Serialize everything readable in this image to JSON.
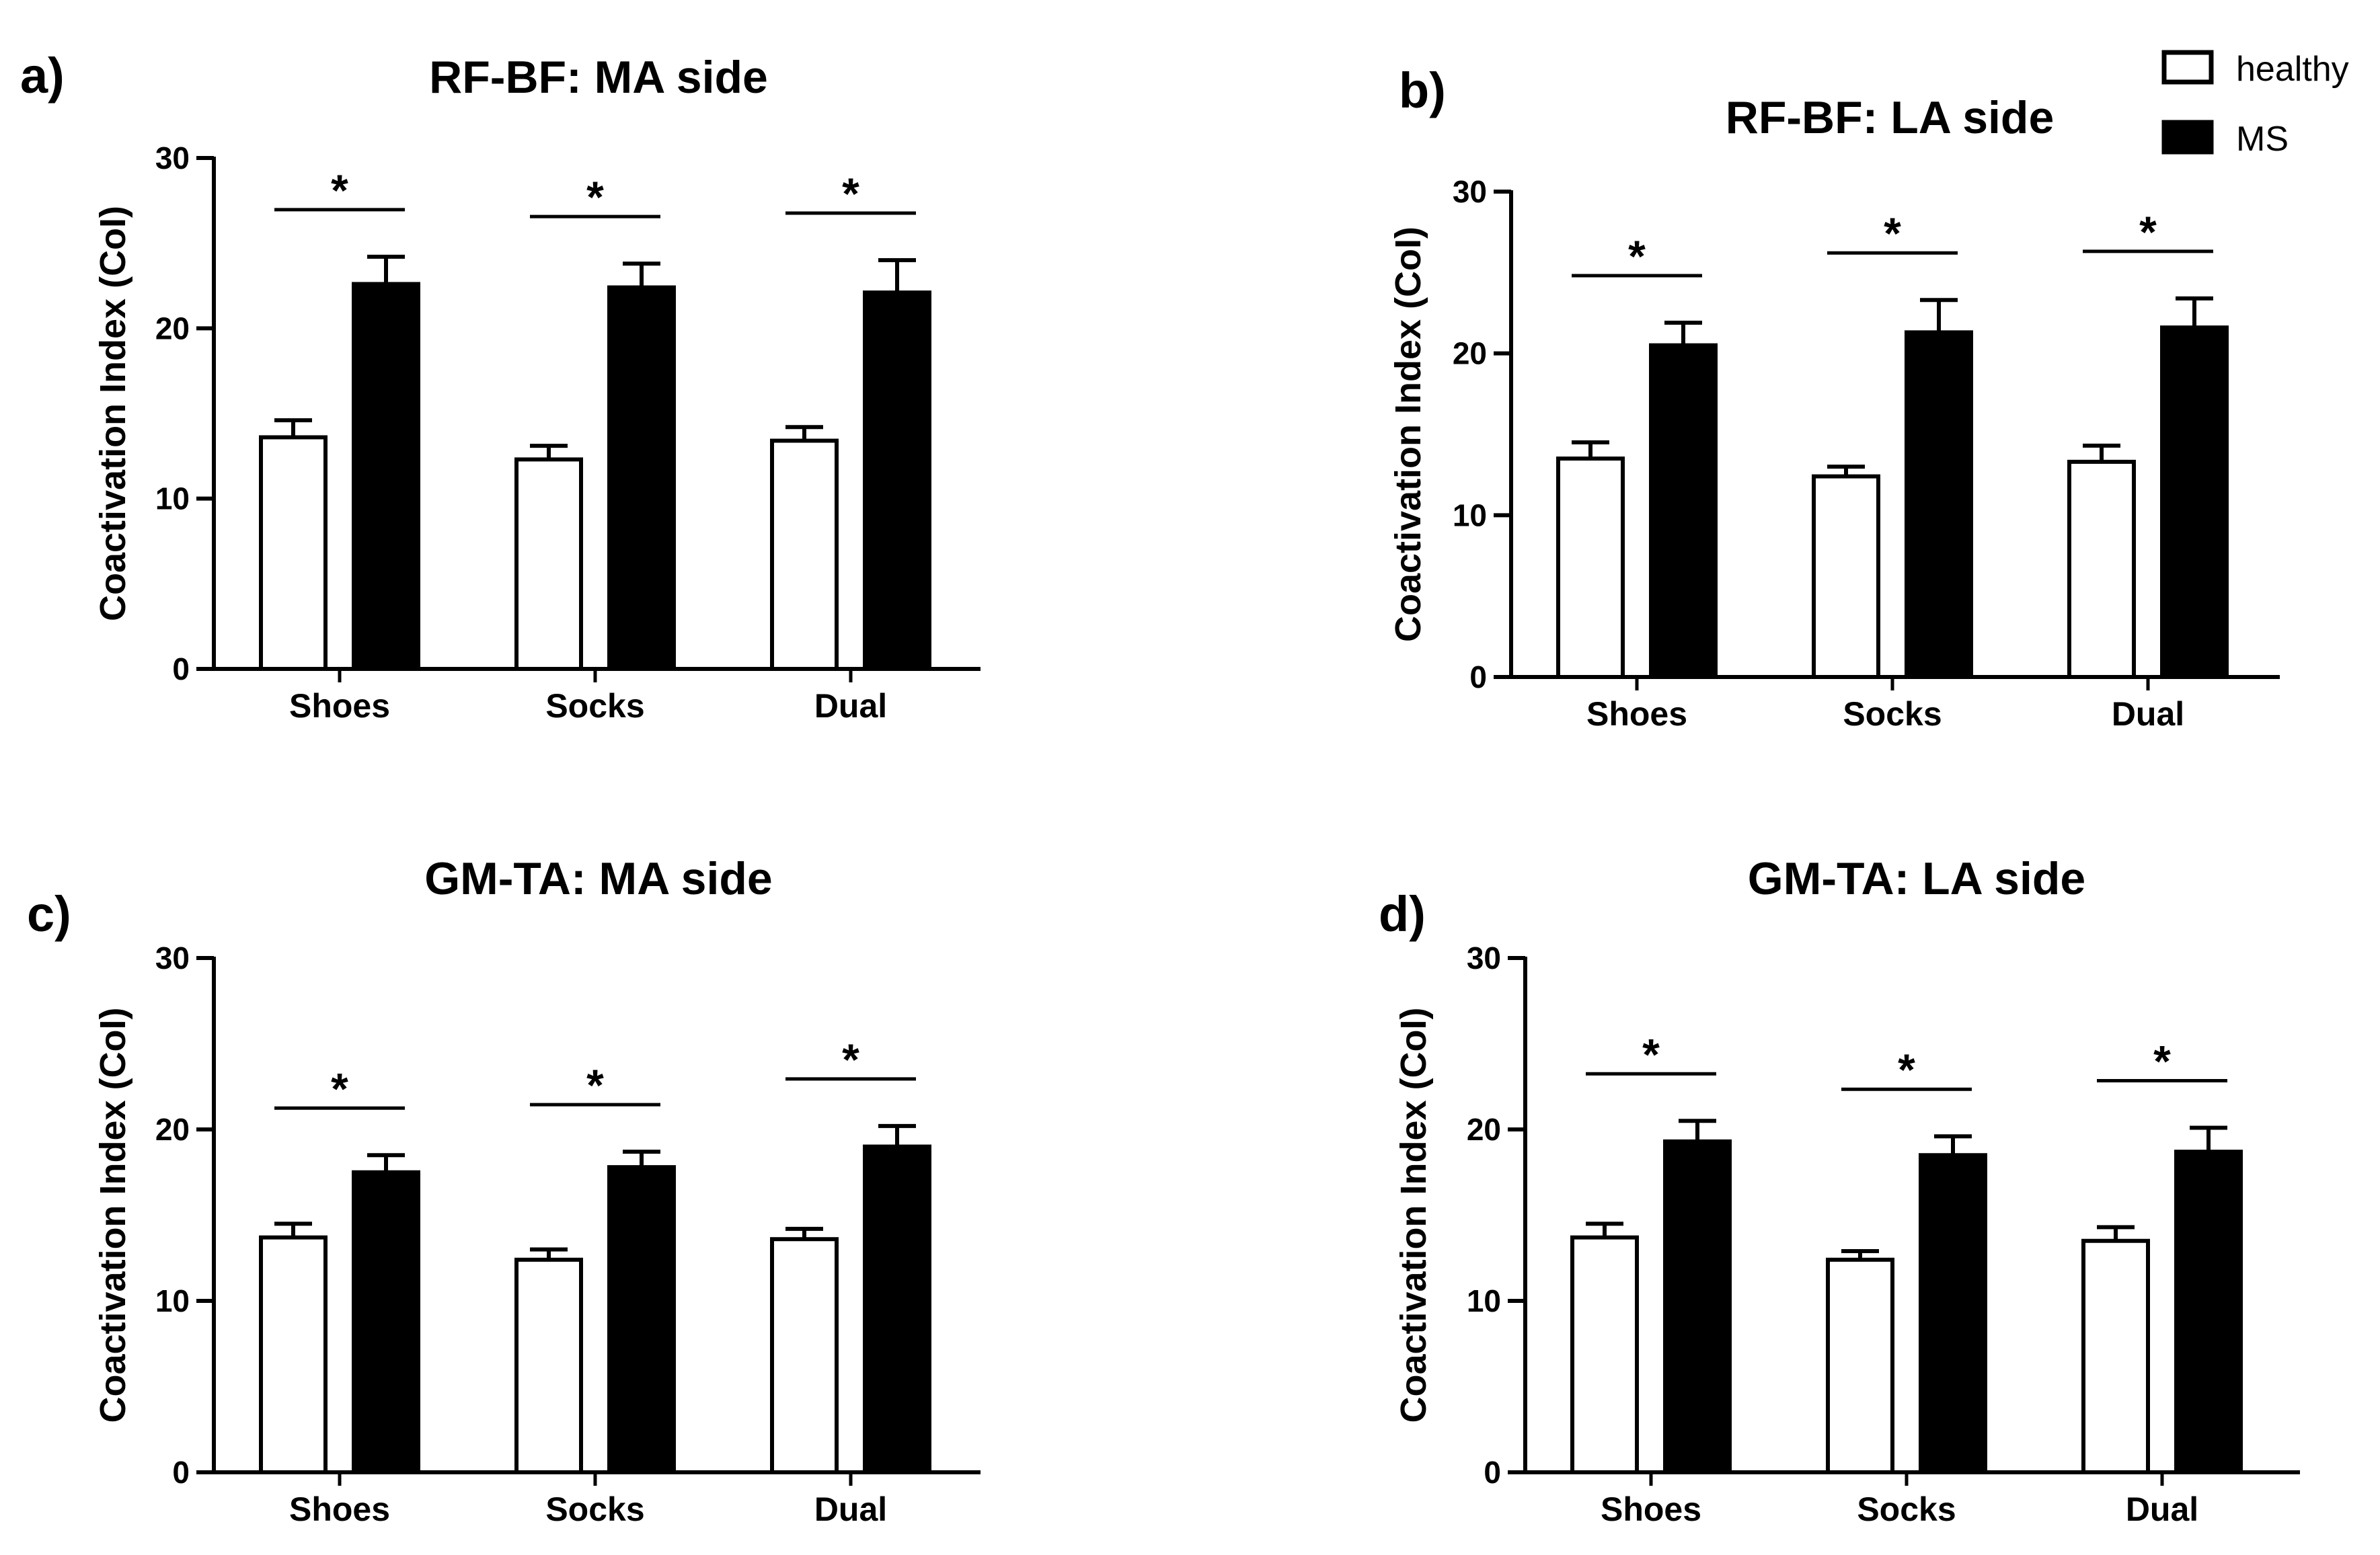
{
  "legend": {
    "items": [
      {
        "label": "healthy",
        "fill": "#ffffff"
      },
      {
        "label": "MS",
        "fill": "#000000"
      }
    ]
  },
  "chart_data": [
    {
      "type": "bar",
      "panel_label": "a)",
      "title": "RF-BF: MA side",
      "ylabel": "Coactivation Index (CoI)",
      "ylim": [
        0,
        30
      ],
      "yticks": [
        0,
        10,
        20,
        30
      ],
      "categories": [
        "Shoes",
        "Socks",
        "Dual"
      ],
      "series": [
        {
          "name": "healthy",
          "values": [
            13.6,
            12.3,
            13.4
          ],
          "errors": [
            1.0,
            0.8,
            0.8
          ]
        },
        {
          "name": "MS",
          "values": [
            22.6,
            22.4,
            22.1
          ],
          "errors": [
            1.6,
            1.4,
            1.9
          ]
        }
      ],
      "significance": [
        "*",
        "*",
        "*"
      ]
    },
    {
      "type": "bar",
      "panel_label": "b)",
      "title": "RF-BF: LA side",
      "ylabel": "Coactivation Index (CoI)",
      "ylim": [
        0,
        30
      ],
      "yticks": [
        0,
        10,
        20,
        30
      ],
      "categories": [
        "Shoes",
        "Socks",
        "Dual"
      ],
      "series": [
        {
          "name": "healthy",
          "values": [
            13.5,
            12.4,
            13.3
          ],
          "errors": [
            1.0,
            0.6,
            1.0
          ]
        },
        {
          "name": "MS",
          "values": [
            20.5,
            21.3,
            21.6
          ],
          "errors": [
            1.4,
            2.0,
            1.8
          ]
        }
      ],
      "significance": [
        "*",
        "*",
        "*"
      ]
    },
    {
      "type": "bar",
      "panel_label": "c)",
      "title": "GM-TA: MA side",
      "ylabel": "Coactivation Index (CoI)",
      "ylim": [
        0,
        30
      ],
      "yticks": [
        0,
        10,
        20,
        30
      ],
      "categories": [
        "Shoes",
        "Socks",
        "Dual"
      ],
      "series": [
        {
          "name": "healthy",
          "values": [
            13.7,
            12.4,
            13.6
          ],
          "errors": [
            0.8,
            0.6,
            0.6
          ]
        },
        {
          "name": "MS",
          "values": [
            17.5,
            17.8,
            19.0
          ],
          "errors": [
            1.0,
            0.9,
            1.2
          ]
        }
      ],
      "significance": [
        "*",
        "*",
        "*"
      ]
    },
    {
      "type": "bar",
      "panel_label": "d)",
      "title": "GM-TA: LA side",
      "ylabel": "Coactivation Index (CoI)",
      "ylim": [
        0,
        30
      ],
      "yticks": [
        0,
        10,
        20,
        30
      ],
      "categories": [
        "Shoes",
        "Socks",
        "Dual"
      ],
      "series": [
        {
          "name": "healthy",
          "values": [
            13.7,
            12.4,
            13.5
          ],
          "errors": [
            0.8,
            0.5,
            0.8
          ]
        },
        {
          "name": "MS",
          "values": [
            19.3,
            18.5,
            18.7
          ],
          "errors": [
            1.2,
            1.1,
            1.4
          ]
        }
      ],
      "significance": [
        "*",
        "*",
        "*"
      ]
    }
  ]
}
